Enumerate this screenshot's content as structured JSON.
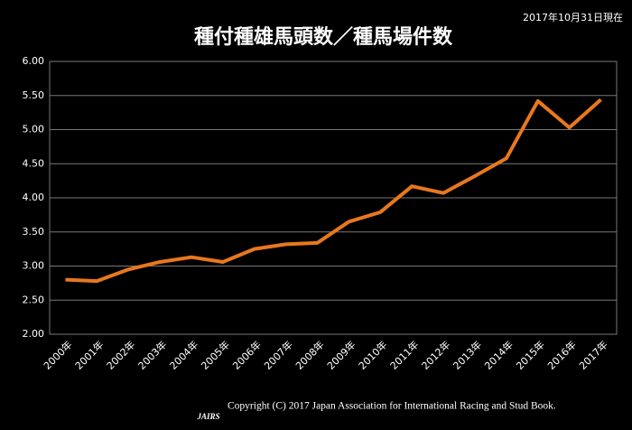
{
  "chart_data": {
    "type": "line",
    "title": "種付種雄馬頭数／種馬場件数",
    "note": "2017年10月31日現在",
    "footer": "Copyright (C) 2017 Japan Association for International Racing and Stud Book.",
    "logo": "JAIRS",
    "categories": [
      "2000年",
      "2001年",
      "2002年",
      "2003年",
      "2004年",
      "2005年",
      "2006年",
      "2007年",
      "2008年",
      "2009年",
      "2010年",
      "2011年",
      "2012年",
      "2013年",
      "2014年",
      "2015年",
      "2016年",
      "2017年"
    ],
    "values": [
      2.8,
      2.78,
      2.95,
      3.06,
      3.13,
      3.06,
      3.25,
      3.32,
      3.34,
      3.65,
      3.79,
      4.17,
      4.07,
      4.32,
      4.58,
      5.42,
      5.03,
      5.44
    ],
    "color": "#e8781e",
    "ylim": [
      2,
      6
    ],
    "yticks": [
      {
        "value": 2,
        "label": "2.00"
      },
      {
        "value": 2.5,
        "label": "2.50"
      },
      {
        "value": 3,
        "label": "3.00"
      },
      {
        "value": 3.5,
        "label": "3.50"
      },
      {
        "value": 4,
        "label": "4.00"
      },
      {
        "value": 4.5,
        "label": "4.50"
      },
      {
        "value": 5,
        "label": "5.00"
      },
      {
        "value": 5.5,
        "label": "5.50"
      },
      {
        "value": 6,
        "label": "6.00"
      }
    ],
    "grid": true
  }
}
